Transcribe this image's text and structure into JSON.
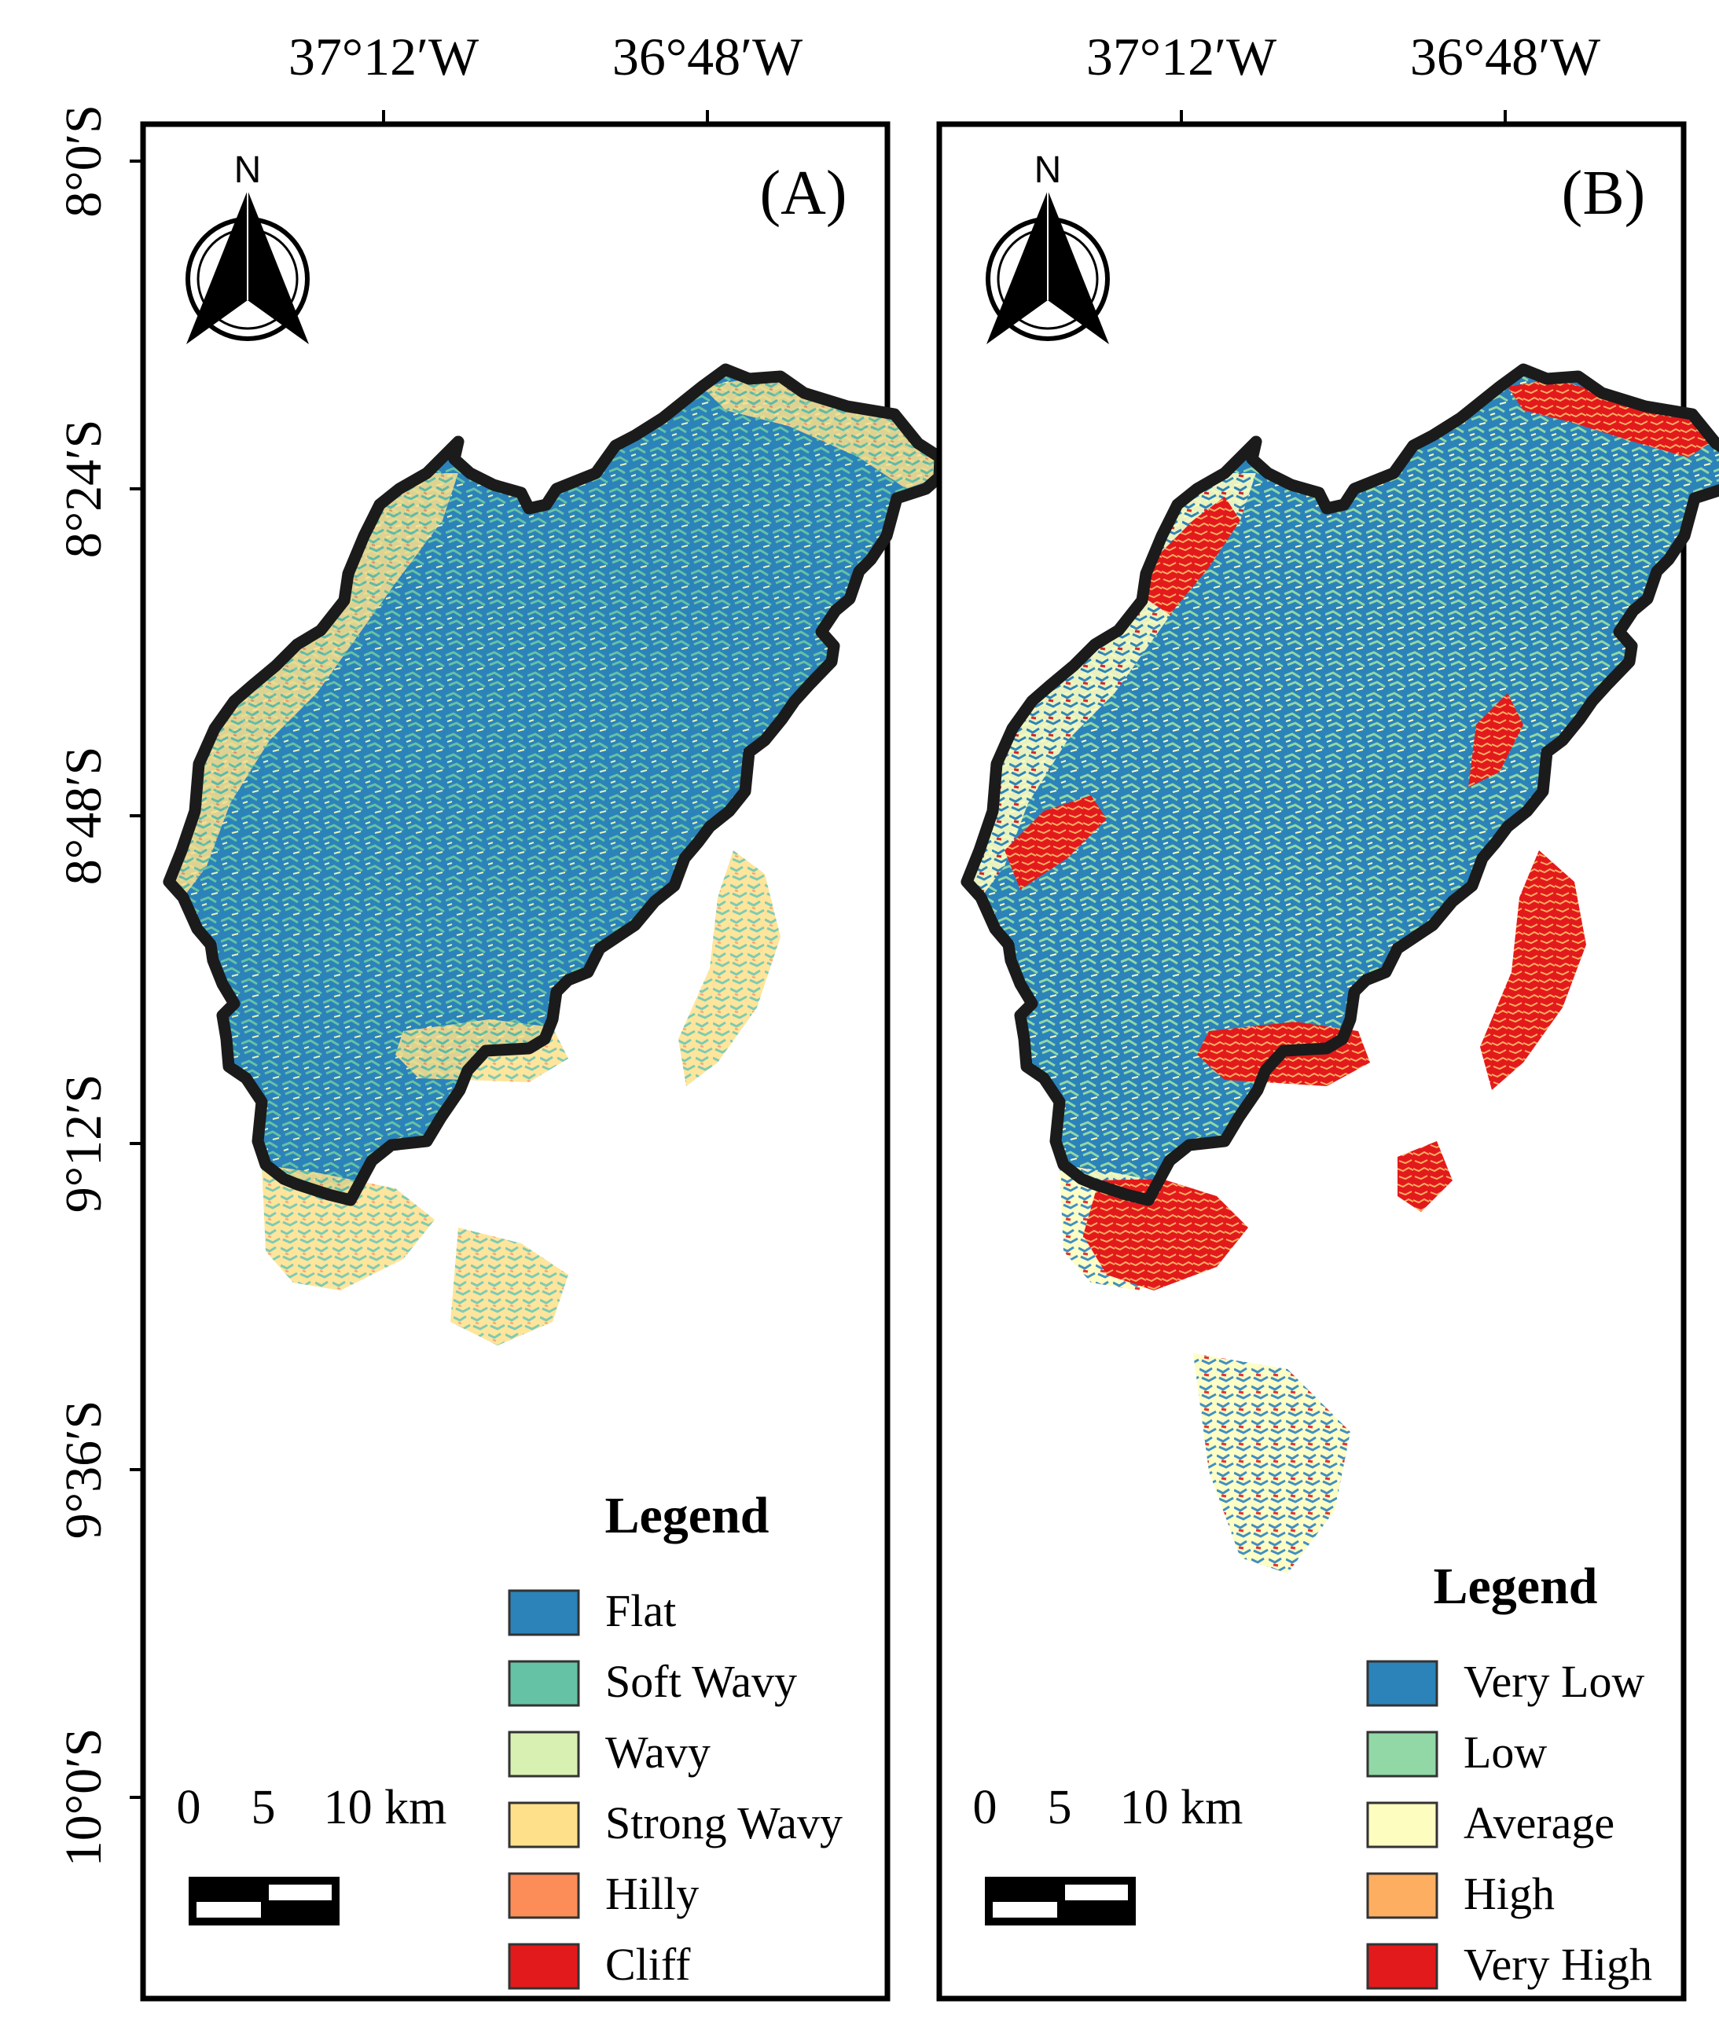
{
  "figure": {
    "longitude_labels": [
      "37°12′W",
      "36°48′W"
    ],
    "latitude_labels": [
      "8°0′S",
      "8°24′S",
      "8°48′S",
      "9°12′S",
      "9°36′S",
      "10°0′S"
    ],
    "north_label": "N",
    "scale_bar": [
      "0",
      "5",
      "10 km"
    ],
    "panels": [
      {
        "id": "A",
        "label": "(A)",
        "legend_title": "Legend",
        "classes": [
          {
            "name": "Flat",
            "color": "#2b83ba"
          },
          {
            "name": "Soft Wavy",
            "color": "#66c2a5"
          },
          {
            "name": "Wavy",
            "color": "#d9f0b3"
          },
          {
            "name": "Strong Wavy",
            "color": "#fee08b"
          },
          {
            "name": "Hilly",
            "color": "#fc8d59"
          },
          {
            "name": "Cliff",
            "color": "#e31a1c"
          }
        ]
      },
      {
        "id": "B",
        "label": "(B)",
        "legend_title": "Legend",
        "classes": [
          {
            "name": "Very Low",
            "color": "#2b83ba"
          },
          {
            "name": "Low",
            "color": "#91d8a6"
          },
          {
            "name": "Average",
            "color": "#fdfdc0"
          },
          {
            "name": "High",
            "color": "#fdae61"
          },
          {
            "name": "Very High",
            "color": "#e31a1c"
          }
        ]
      }
    ]
  }
}
